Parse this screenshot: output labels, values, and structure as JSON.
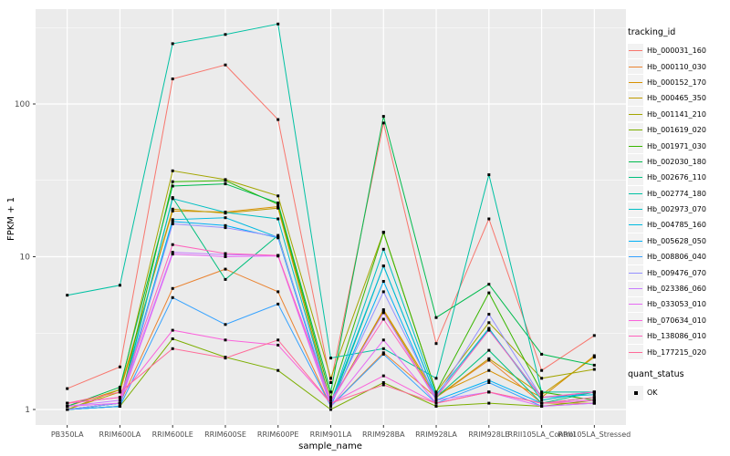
{
  "figure": {
    "background": "#FFFFFF",
    "panel_background": "#EBEBEB",
    "grid_color": "#FFFFFF",
    "tick_label_color": "#4D4D4D",
    "axis_title_color": "#000000",
    "point_color": "#000000"
  },
  "chart_data": {
    "type": "line",
    "title": "",
    "xlabel": "sample_name",
    "ylabel": "FPKM + 1",
    "y_scale": "log10",
    "y_ticks": [
      "1",
      "10",
      "100"
    ],
    "y_tick_values": [
      1,
      10,
      100
    ],
    "ylim": [
      0.93,
      420
    ],
    "grid": true,
    "legend_position": "right",
    "legend_titles": {
      "series": "tracking_id",
      "shape": "quant_status"
    },
    "quant_status": {
      "label": "OK",
      "marker": "black-square"
    },
    "categories": [
      "PB350LA",
      "RRIM600LA",
      "RRIM600LE",
      "RRIM600SE",
      "RRIM600PE",
      "RRIM901LA",
      "RRIM928BA",
      "RRIM928LA",
      "RRIM928LE",
      "RRII105LA_Control",
      "RRII105LA_Stressed"
    ],
    "series": [
      {
        "name": "Hb_000031_160",
        "color": "#F8766D",
        "values": [
          1.37,
          1.9,
          146,
          180,
          79,
          1.5,
          75,
          2.7,
          17.7,
          1.8,
          3.05
        ]
      },
      {
        "name": "Hb_000110_030",
        "color": "#EA8331",
        "values": [
          1.0,
          1.1,
          6.2,
          8.3,
          5.9,
          1.05,
          2.35,
          1.2,
          2.1,
          1.1,
          1.1
        ]
      },
      {
        "name": "Hb_000152_170",
        "color": "#D89000",
        "values": [
          1.05,
          1.35,
          19.9,
          19.6,
          21.3,
          1.1,
          4.5,
          1.25,
          1.8,
          1.2,
          2.25
        ]
      },
      {
        "name": "Hb_000465_350",
        "color": "#C09B00",
        "values": [
          1.0,
          1.3,
          20.5,
          19.3,
          20.8,
          1.1,
          4.4,
          1.2,
          2.15,
          1.25,
          2.2
        ]
      },
      {
        "name": "Hb_001141_210",
        "color": "#A3A500",
        "values": [
          1.0,
          1.35,
          36.5,
          32,
          25,
          1.6,
          14.5,
          1.3,
          3.7,
          1.6,
          1.83
        ]
      },
      {
        "name": "Hb_001619_020",
        "color": "#7CAE00",
        "values": [
          1.0,
          1.05,
          2.9,
          2.2,
          1.8,
          1.0,
          1.5,
          1.05,
          1.1,
          1.05,
          1.15
        ]
      },
      {
        "name": "Hb_001971_030",
        "color": "#39B600",
        "values": [
          1.0,
          1.1,
          31,
          31.5,
          22,
          1.2,
          14.4,
          1.3,
          5.8,
          1.3,
          1.15
        ]
      },
      {
        "name": "Hb_002030_180",
        "color": "#00BB4E",
        "values": [
          1.05,
          1.4,
          29,
          30,
          22.5,
          1.3,
          83,
          4.0,
          6.6,
          2.3,
          1.95
        ]
      },
      {
        "name": "Hb_002676_110",
        "color": "#00BF7D",
        "values": [
          1.0,
          1.05,
          24.4,
          7.1,
          13.8,
          1.05,
          8.7,
          1.2,
          2.44,
          1.1,
          1.3
        ]
      },
      {
        "name": "Hb_002774_180",
        "color": "#00C1A3",
        "values": [
          5.6,
          6.5,
          248,
          285,
          334,
          2.17,
          2.5,
          1.6,
          34.4,
          1.3,
          1.3
        ]
      },
      {
        "name": "Hb_002973_070",
        "color": "#00BFC4",
        "values": [
          1.0,
          1.1,
          24.0,
          19.5,
          17.7,
          1.1,
          11.2,
          1.25,
          3.4,
          1.15,
          1.3
        ]
      },
      {
        "name": "Hb_004785_160",
        "color": "#00BAE0",
        "values": [
          1.0,
          1.1,
          17.5,
          18.0,
          13.4,
          1.1,
          8.7,
          1.2,
          3.35,
          1.2,
          1.25
        ]
      },
      {
        "name": "Hb_005628_050",
        "color": "#00B0F6",
        "values": [
          1.0,
          1.05,
          17.0,
          16.0,
          13.3,
          1.05,
          6.9,
          1.15,
          1.55,
          1.1,
          1.2
        ]
      },
      {
        "name": "Hb_008806_040",
        "color": "#35A2FF",
        "values": [
          1.0,
          1.05,
          5.4,
          3.6,
          4.9,
          1.05,
          2.3,
          1.1,
          1.5,
          1.05,
          1.1
        ]
      },
      {
        "name": "Hb_009476_070",
        "color": "#9590FF",
        "values": [
          1.0,
          1.1,
          16.4,
          15.5,
          13.5,
          1.1,
          5.9,
          1.2,
          4.2,
          1.2,
          1.3
        ]
      },
      {
        "name": "Hb_023386_060",
        "color": "#C77CFF",
        "values": [
          1.05,
          1.15,
          10.7,
          10.3,
          10.2,
          1.1,
          4.3,
          1.15,
          1.3,
          1.1,
          1.15
        ]
      },
      {
        "name": "Hb_033053_010",
        "color": "#E76BF3",
        "values": [
          1.05,
          1.1,
          10.4,
          10.0,
          10.1,
          1.05,
          2.85,
          1.1,
          1.3,
          1.05,
          1.1
        ]
      },
      {
        "name": "Hb_070634_010",
        "color": "#FA62DB",
        "values": [
          1.1,
          1.2,
          3.3,
          2.85,
          2.64,
          1.1,
          1.66,
          1.1,
          1.3,
          1.1,
          1.15
        ]
      },
      {
        "name": "Hb_138086_010",
        "color": "#FF62BC",
        "values": [
          1.1,
          1.2,
          12.0,
          10.5,
          10.2,
          1.15,
          3.9,
          1.2,
          3.3,
          1.2,
          1.3
        ]
      },
      {
        "name": "Hb_177215_020",
        "color": "#FF6A98",
        "values": [
          1.1,
          1.3,
          2.5,
          2.17,
          2.85,
          1.1,
          1.45,
          1.1,
          1.3,
          1.1,
          1.2
        ]
      }
    ]
  }
}
